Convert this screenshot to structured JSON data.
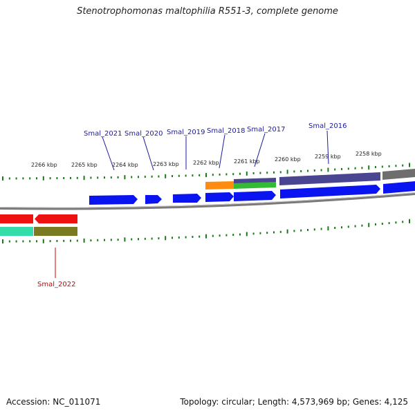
{
  "title": "Stenotrophomonas maltophilia R551-3, complete genome",
  "footer": {
    "accession_label": "Accession:",
    "accession": "NC_011071",
    "topology_label": "Topology:",
    "topology": "circular",
    "length_label": "Length:",
    "length": "4,573,969 bp",
    "genes_label": "Genes:",
    "genes": "4,125"
  },
  "colors": {
    "forward_gene": "#0a14f0",
    "reverse_gene": "#ee1111",
    "label_forward": "#1a1aa0",
    "label_reverse": "#cc0000",
    "backbone": "#7a7a7a",
    "tick": "#1a7a1a",
    "track_purple": "#4a4590",
    "track_gray": "#6e6e6e",
    "track_orange": "#ff8c10",
    "track_green": "#33bb33",
    "track_teal": "#33ddaa",
    "track_olive": "#7a7a20"
  },
  "scale": {
    "unit": "kbp",
    "tick_labels": [
      "2266 kbp",
      "2265 kbp",
      "2264 kbp",
      "2263 kbp",
      "2262 kbp",
      "2261 kbp",
      "2260 kbp",
      "2259 kbp",
      "2258 kbp"
    ]
  },
  "genes": [
    {
      "label": "Smal_2021",
      "strand": "forward"
    },
    {
      "label": "Smal_2020",
      "strand": "forward"
    },
    {
      "label": "Smal_2019",
      "strand": "forward"
    },
    {
      "label": "Smal_2018",
      "strand": "forward"
    },
    {
      "label": "Smal_2017",
      "strand": "forward"
    },
    {
      "label": "Smal_2016",
      "strand": "forward"
    },
    {
      "label": "Smal_2022",
      "strand": "reverse"
    }
  ]
}
